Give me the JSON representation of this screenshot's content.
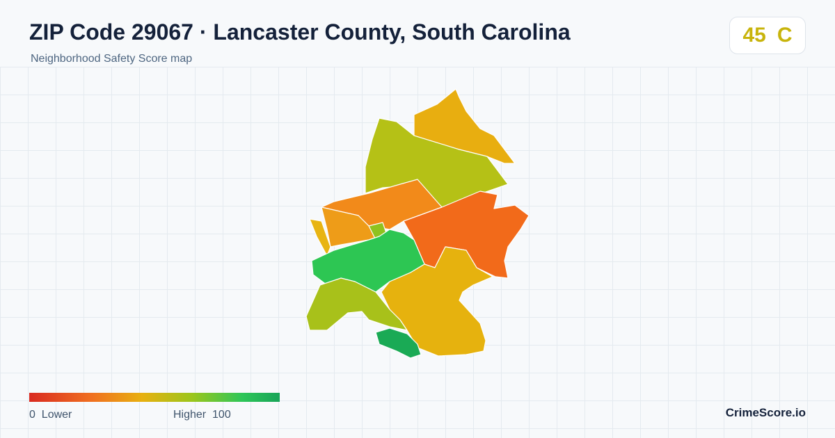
{
  "header": {
    "title": "ZIP Code 29067 · Lancaster County, South Carolina",
    "subtitle": "Neighborhood Safety Score map"
  },
  "badge": {
    "score": 45,
    "grade": "C"
  },
  "legend": {
    "min": 0,
    "min_label": "Lower",
    "max_label": "Higher",
    "max": 100
  },
  "brand": "CrimeScore.io"
}
